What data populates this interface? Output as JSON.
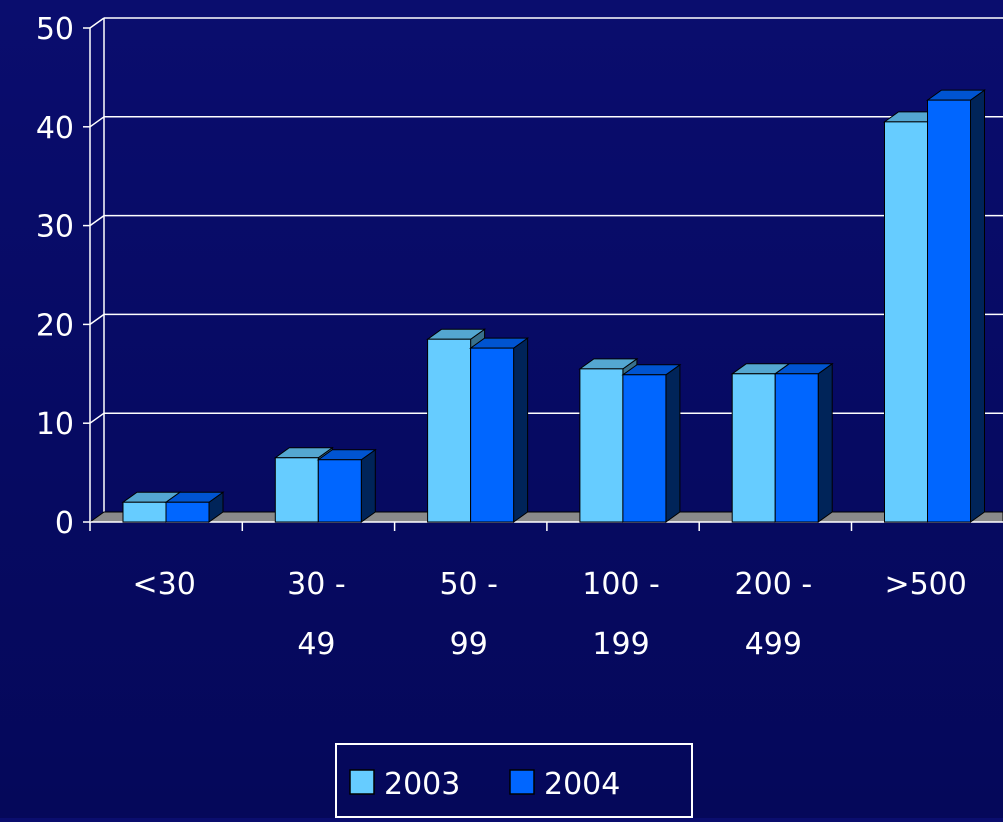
{
  "chart_data": {
    "type": "bar",
    "title": "",
    "xlabel": "",
    "ylabel": "",
    "categories": [
      [
        "<30"
      ],
      [
        "30 -",
        "49"
      ],
      [
        "50 -",
        "99"
      ],
      [
        "100 -",
        "199"
      ],
      [
        "200 -",
        "499"
      ],
      [
        ">500"
      ]
    ],
    "series": [
      {
        "name": "2003",
        "values": [
          2,
          6.5,
          18.5,
          15.5,
          15,
          40.5
        ]
      },
      {
        "name": "2004",
        "values": [
          2,
          6.3,
          17.6,
          14.9,
          15,
          42.7
        ]
      }
    ],
    "ylim": [
      0,
      50
    ],
    "yticks": [
      0,
      10,
      20,
      30,
      40,
      50
    ],
    "grid": true,
    "legend_position": "bottom-center",
    "colors": {
      "background": "#0a0d6e",
      "series_2003": "#66ccff",
      "series_2004": "#0066ff",
      "gridline": "#ffffff",
      "floor": "#8a8a8a",
      "text": "#ffffff"
    }
  }
}
